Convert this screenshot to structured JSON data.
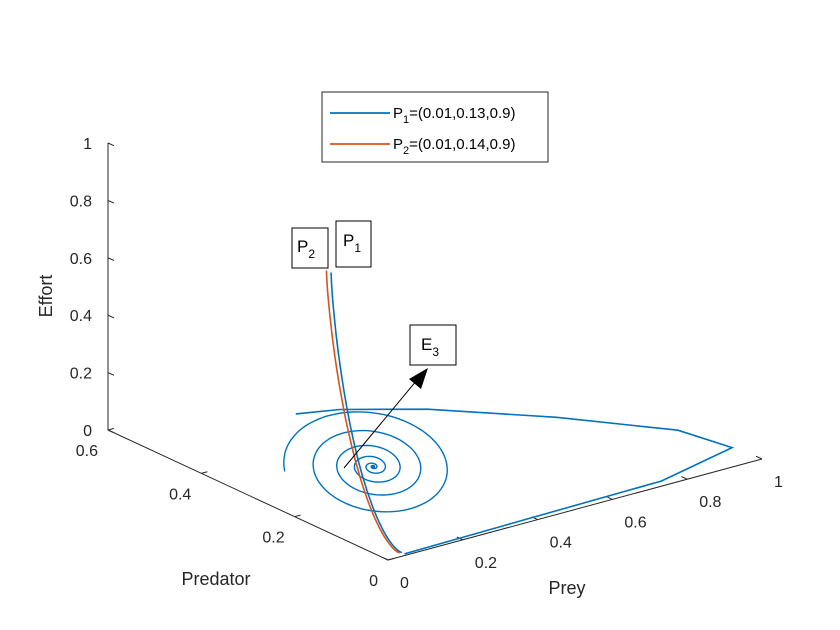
{
  "chart_data": {
    "type": "line3d",
    "axes": {
      "x": {
        "label": "Prey",
        "ticks": [
          "0",
          "0.2",
          "0.4",
          "0.6",
          "0.8",
          "1"
        ],
        "range": [
          0,
          1
        ]
      },
      "y": {
        "label": "Predator",
        "ticks": [
          "0",
          "0.2",
          "0.4",
          "0.6"
        ],
        "range": [
          0,
          0.6
        ]
      },
      "z": {
        "label": "Effort",
        "ticks": [
          "0",
          "0.2",
          "0.4",
          "0.6",
          "0.8",
          "1"
        ],
        "range": [
          0,
          1
        ]
      }
    },
    "series": [
      {
        "name": "P1",
        "legend_main": "P",
        "legend_sub": "1",
        "legend_rest": "=(0.01,0.13,0.9)",
        "color": "#0072BD",
        "start": [
          0.01,
          0.13,
          0.9
        ]
      },
      {
        "name": "P2",
        "legend_main": "P",
        "legend_sub": "2",
        "legend_rest": "=(0.01,0.14,0.9)",
        "color": "#D95319",
        "start": [
          0.01,
          0.14,
          0.9
        ]
      }
    ],
    "equilibrium": {
      "main": "E",
      "sub": "3",
      "point": [
        0.21,
        0.2,
        0.1
      ]
    },
    "point_labels": [
      {
        "main": "P",
        "sub": "2"
      },
      {
        "main": "P",
        "sub": "1"
      }
    ],
    "legend_position": "top-center"
  }
}
